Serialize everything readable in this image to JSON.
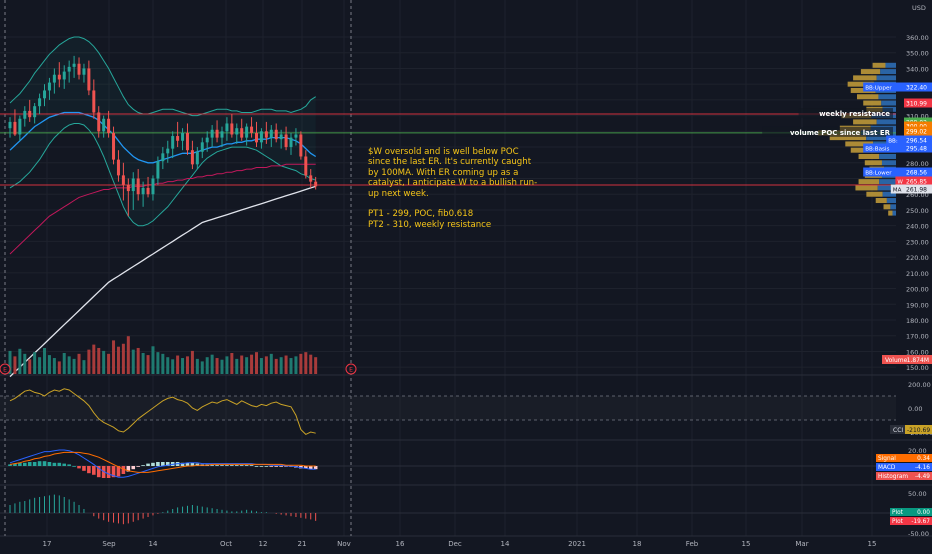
{
  "chart_data": {
    "type": "candlestick",
    "currency": "USD",
    "price_axis": {
      "ticks": [
        "360.00",
        "350.00",
        "340.00",
        "330.00",
        "320.00",
        "310.00",
        "300.00",
        "290.00",
        "280.00",
        "270.00",
        "260.00",
        "250.00",
        "240.00",
        "230.00",
        "220.00",
        "210.00",
        "200.00",
        "190.00",
        "180.00",
        "170.00",
        "160.00",
        "150.00"
      ],
      "range": [
        146,
        366
      ]
    },
    "time_axis": {
      "ticks": [
        "17",
        "Sep",
        "14",
        "Oct",
        "12",
        "21",
        "Nov",
        "16",
        "Dec",
        "14",
        "2021",
        "18",
        "Feb",
        "15",
        "Mar",
        "15"
      ],
      "visible_range": [
        "Aug 10",
        "Apr 20"
      ]
    },
    "candles": [
      {
        "o": 302,
        "h": 309,
        "l": 296,
        "c": 306
      },
      {
        "o": 306,
        "h": 314,
        "l": 297,
        "c": 298
      },
      {
        "o": 298,
        "h": 310,
        "l": 294,
        "c": 308
      },
      {
        "o": 308,
        "h": 316,
        "l": 303,
        "c": 313
      },
      {
        "o": 313,
        "h": 320,
        "l": 306,
        "c": 309
      },
      {
        "o": 309,
        "h": 318,
        "l": 305,
        "c": 316
      },
      {
        "o": 316,
        "h": 324,
        "l": 311,
        "c": 321
      },
      {
        "o": 321,
        "h": 330,
        "l": 316,
        "c": 326
      },
      {
        "o": 326,
        "h": 334,
        "l": 320,
        "c": 331
      },
      {
        "o": 331,
        "h": 340,
        "l": 324,
        "c": 336
      },
      {
        "o": 336,
        "h": 344,
        "l": 328,
        "c": 333
      },
      {
        "o": 333,
        "h": 342,
        "l": 327,
        "c": 338
      },
      {
        "o": 338,
        "h": 345,
        "l": 331,
        "c": 341
      },
      {
        "o": 341,
        "h": 348,
        "l": 334,
        "c": 343
      },
      {
        "o": 343,
        "h": 347,
        "l": 333,
        "c": 336
      },
      {
        "o": 336,
        "h": 343,
        "l": 331,
        "c": 340
      },
      {
        "o": 340,
        "h": 345,
        "l": 323,
        "c": 326
      },
      {
        "o": 326,
        "h": 333,
        "l": 308,
        "c": 312
      },
      {
        "o": 312,
        "h": 316,
        "l": 296,
        "c": 300
      },
      {
        "o": 300,
        "h": 310,
        "l": 296,
        "c": 308
      },
      {
        "o": 308,
        "h": 313,
        "l": 296,
        "c": 299
      },
      {
        "o": 299,
        "h": 303,
        "l": 279,
        "c": 282
      },
      {
        "o": 282,
        "h": 288,
        "l": 268,
        "c": 272
      },
      {
        "o": 272,
        "h": 280,
        "l": 256,
        "c": 266
      },
      {
        "o": 266,
        "h": 270,
        "l": 246,
        "c": 262
      },
      {
        "o": 262,
        "h": 274,
        "l": 250,
        "c": 270
      },
      {
        "o": 270,
        "h": 276,
        "l": 256,
        "c": 260
      },
      {
        "o": 260,
        "h": 268,
        "l": 252,
        "c": 264
      },
      {
        "o": 264,
        "h": 271,
        "l": 258,
        "c": 260
      },
      {
        "o": 260,
        "h": 272,
        "l": 256,
        "c": 270
      },
      {
        "o": 270,
        "h": 284,
        "l": 266,
        "c": 281
      },
      {
        "o": 281,
        "h": 290,
        "l": 276,
        "c": 286
      },
      {
        "o": 286,
        "h": 294,
        "l": 280,
        "c": 289
      },
      {
        "o": 289,
        "h": 300,
        "l": 283,
        "c": 297
      },
      {
        "o": 297,
        "h": 306,
        "l": 290,
        "c": 294
      },
      {
        "o": 294,
        "h": 302,
        "l": 288,
        "c": 299
      },
      {
        "o": 299,
        "h": 305,
        "l": 285,
        "c": 288
      },
      {
        "o": 288,
        "h": 294,
        "l": 276,
        "c": 279
      },
      {
        "o": 279,
        "h": 290,
        "l": 276,
        "c": 287
      },
      {
        "o": 287,
        "h": 296,
        "l": 283,
        "c": 293
      },
      {
        "o": 293,
        "h": 300,
        "l": 287,
        "c": 296
      },
      {
        "o": 296,
        "h": 304,
        "l": 290,
        "c": 301
      },
      {
        "o": 301,
        "h": 307,
        "l": 293,
        "c": 296
      },
      {
        "o": 296,
        "h": 303,
        "l": 290,
        "c": 300
      },
      {
        "o": 300,
        "h": 309,
        "l": 294,
        "c": 305
      },
      {
        "o": 305,
        "h": 311,
        "l": 296,
        "c": 298
      },
      {
        "o": 298,
        "h": 305,
        "l": 292,
        "c": 302
      },
      {
        "o": 302,
        "h": 308,
        "l": 294,
        "c": 296
      },
      {
        "o": 296,
        "h": 305,
        "l": 291,
        "c": 303
      },
      {
        "o": 303,
        "h": 309,
        "l": 296,
        "c": 299
      },
      {
        "o": 299,
        "h": 306,
        "l": 290,
        "c": 293
      },
      {
        "o": 293,
        "h": 302,
        "l": 289,
        "c": 300
      },
      {
        "o": 300,
        "h": 306,
        "l": 292,
        "c": 296
      },
      {
        "o": 296,
        "h": 304,
        "l": 290,
        "c": 301
      },
      {
        "o": 301,
        "h": 305,
        "l": 293,
        "c": 295
      },
      {
        "o": 295,
        "h": 301,
        "l": 289,
        "c": 298
      },
      {
        "o": 298,
        "h": 303,
        "l": 288,
        "c": 290
      },
      {
        "o": 290,
        "h": 299,
        "l": 285,
        "c": 296
      },
      {
        "o": 296,
        "h": 302,
        "l": 291,
        "c": 298
      },
      {
        "o": 298,
        "h": 300,
        "l": 282,
        "c": 284
      },
      {
        "o": 284,
        "h": 288,
        "l": 270,
        "c": 272
      },
      {
        "o": 272,
        "h": 276,
        "l": 264,
        "c": 268
      },
      {
        "o": 268,
        "h": 271,
        "l": 263,
        "c": 265
      }
    ],
    "overlays": {
      "ma_short": [
        288,
        291,
        294,
        297,
        300,
        303,
        305,
        307,
        309,
        310,
        311,
        312,
        312,
        312,
        312,
        311,
        310,
        309,
        307,
        304,
        301,
        298,
        294,
        290,
        287,
        284,
        282,
        281,
        280,
        280,
        281,
        282,
        283,
        284,
        285,
        286,
        286,
        286,
        287,
        288,
        289,
        290,
        290,
        291,
        292,
        292,
        293,
        293,
        294,
        294,
        295,
        295,
        295,
        296,
        296,
        296,
        296,
        295,
        294,
        292,
        289,
        286,
        284
      ],
      "ma_long": [
        222,
        225,
        228,
        231,
        234,
        237,
        240,
        243,
        246,
        248,
        250,
        252,
        254,
        256,
        258,
        259,
        260,
        261,
        262,
        263,
        263,
        264,
        264,
        264,
        264,
        265,
        265,
        265,
        266,
        266,
        267,
        267,
        268,
        268,
        269,
        269,
        270,
        270,
        271,
        271,
        272,
        272,
        273,
        273,
        274,
        274,
        275,
        275,
        276,
        276,
        277,
        277,
        277,
        278,
        278,
        278,
        279,
        279,
        279,
        279,
        279,
        279,
        279
      ],
      "ma_100": [
        144,
        147,
        150,
        153,
        156,
        159,
        162,
        165,
        168,
        171,
        174,
        177,
        180,
        183,
        186,
        189,
        192,
        195,
        198,
        201,
        204,
        206,
        208,
        210,
        212,
        214,
        216,
        218,
        220,
        222,
        224,
        226,
        228,
        230,
        232,
        234,
        236,
        238,
        240,
        242,
        243,
        244,
        245,
        246,
        247,
        248,
        249,
        250,
        251,
        252,
        253,
        254,
        255,
        256,
        257,
        258,
        259,
        260,
        261,
        262,
        263,
        264,
        265
      ],
      "bb_upper": [
        318,
        321,
        324,
        328,
        332,
        337,
        341,
        345,
        349,
        352,
        355,
        357,
        359,
        360,
        360,
        359,
        357,
        354,
        350,
        345,
        340,
        334,
        328,
        322,
        317,
        314,
        312,
        311,
        311,
        312,
        313,
        314,
        314,
        314,
        313,
        312,
        311,
        310,
        310,
        311,
        312,
        313,
        314,
        314,
        314,
        313,
        313,
        312,
        312,
        312,
        313,
        314,
        314,
        314,
        313,
        313,
        313,
        312,
        313,
        314,
        316,
        320,
        322
      ],
      "bb_lower": [
        264,
        266,
        268,
        271,
        274,
        278,
        282,
        287,
        292,
        296,
        299,
        302,
        304,
        305,
        305,
        304,
        301,
        297,
        291,
        284,
        276,
        268,
        260,
        252,
        246,
        242,
        240,
        240,
        241,
        243,
        246,
        249,
        252,
        256,
        260,
        264,
        268,
        272,
        276,
        280,
        283,
        285,
        287,
        288,
        289,
        290,
        290,
        290,
        290,
        289,
        288,
        286,
        284,
        282,
        280,
        278,
        277,
        276,
        275,
        273,
        272,
        270,
        269
      ]
    },
    "horizontal_lines": [
      {
        "label": "weekly resistance",
        "value": 310.99,
        "color": "#f23645"
      },
      {
        "label": "volume POC since last ER",
        "value": 299.02,
        "color": "#4caf50"
      },
      {
        "label": "",
        "value": 265.85,
        "color": "#f23645"
      }
    ],
    "volume_profile": [
      {
        "price": 342,
        "value": 0.3
      },
      {
        "price": 338,
        "value": 0.45
      },
      {
        "price": 334,
        "value": 0.55
      },
      {
        "price": 330,
        "value": 0.62
      },
      {
        "price": 326,
        "value": 0.58
      },
      {
        "price": 322,
        "value": 0.5
      },
      {
        "price": 318,
        "value": 0.42
      },
      {
        "price": 314,
        "value": 0.38
      },
      {
        "price": 310,
        "value": 0.7
      },
      {
        "price": 306,
        "value": 0.55
      },
      {
        "price": 302,
        "value": 0.72
      },
      {
        "price": 299,
        "value": 1.0
      },
      {
        "price": 296,
        "value": 0.85
      },
      {
        "price": 292,
        "value": 0.65
      },
      {
        "price": 288,
        "value": 0.58
      },
      {
        "price": 284,
        "value": 0.48
      },
      {
        "price": 280,
        "value": 0.4
      },
      {
        "price": 276,
        "value": 0.34
      },
      {
        "price": 272,
        "value": 0.4
      },
      {
        "price": 268,
        "value": 0.48
      },
      {
        "price": 264,
        "value": 0.52
      },
      {
        "price": 260,
        "value": 0.38
      },
      {
        "price": 256,
        "value": 0.26
      },
      {
        "price": 252,
        "value": 0.16
      },
      {
        "price": 248,
        "value": 0.1
      }
    ],
    "price_labels": [
      {
        "text": "BB:Upper",
        "value": "322.40",
        "color": "#2962ff"
      },
      {
        "text": "weekly resistance",
        "value": "310.99",
        "color": "#f23645"
      },
      {
        "text": "volume POC since last ER",
        "value": "299.02",
        "color": "#4caf50"
      },
      {
        "text": "",
        "value": "300.00",
        "color": "#f57c00"
      },
      {
        "text": "",
        "value": "299.02",
        "color": "#f57c00"
      },
      {
        "text": "BB:",
        "value": "296.54",
        "color": "#2962ff"
      },
      {
        "text": "BB:Basis",
        "value": "295.48",
        "color": "#2962ff"
      },
      {
        "text": "BB:Lower",
        "value": "268.56",
        "color": "#2962ff"
      },
      {
        "text": "W",
        "value": "265.85",
        "color": "#f23645"
      },
      {
        "text": "MA",
        "value": "261.98",
        "color": "#ffffff"
      }
    ],
    "volume": {
      "label": "Volume",
      "value": "1.874M",
      "values": [
        0.55,
        0.42,
        0.6,
        0.48,
        0.35,
        0.52,
        0.4,
        0.62,
        0.45,
        0.38,
        0.3,
        0.5,
        0.42,
        0.36,
        0.48,
        0.33,
        0.58,
        0.7,
        0.62,
        0.55,
        0.48,
        0.8,
        0.65,
        0.72,
        0.9,
        0.58,
        0.62,
        0.5,
        0.45,
        0.66,
        0.52,
        0.48,
        0.4,
        0.35,
        0.44,
        0.38,
        0.42,
        0.55,
        0.36,
        0.3,
        0.4,
        0.46,
        0.38,
        0.34,
        0.42,
        0.5,
        0.36,
        0.44,
        0.4,
        0.46,
        0.52,
        0.38,
        0.42,
        0.48,
        0.36,
        0.4,
        0.44,
        0.38,
        0.42,
        0.48,
        0.52,
        0.46,
        0.4
      ],
      "up": [
        1,
        0,
        1,
        1,
        0,
        1,
        1,
        1,
        1,
        1,
        0,
        1,
        1,
        1,
        0,
        1,
        0,
        0,
        0,
        1,
        0,
        0,
        0,
        0,
        0,
        1,
        0,
        1,
        0,
        1,
        1,
        1,
        1,
        1,
        0,
        1,
        0,
        0,
        1,
        1,
        1,
        1,
        0,
        1,
        1,
        0,
        1,
        0,
        1,
        0,
        0,
        1,
        0,
        1,
        0,
        1,
        0,
        1,
        1,
        0,
        0,
        0,
        0
      ]
    },
    "cci": {
      "label": "CCI",
      "value": "-210.69",
      "ticks": [
        "200.00",
        "0.00",
        "-200.00"
      ],
      "range": [
        -280,
        280
      ],
      "values": [
        60,
        80,
        110,
        140,
        150,
        130,
        120,
        100,
        130,
        150,
        140,
        160,
        150,
        120,
        90,
        60,
        20,
        -40,
        -90,
        -120,
        -140,
        -160,
        -190,
        -200,
        -170,
        -130,
        -90,
        -60,
        -30,
        0,
        30,
        60,
        80,
        90,
        70,
        60,
        40,
        0,
        -20,
        10,
        30,
        50,
        40,
        60,
        70,
        50,
        30,
        60,
        40,
        20,
        10,
        30,
        20,
        40,
        50,
        30,
        20,
        10,
        -60,
        -180,
        -220,
        -200,
        -210
      ]
    },
    "macd": {
      "labels": [
        {
          "text": "Signal",
          "value": "0.34"
        },
        {
          "text": "MACD",
          "value": "-4.16"
        },
        {
          "text": "Histogram",
          "value": "-4.49"
        }
      ],
      "ticks": [
        "20.00",
        "0.00"
      ],
      "range": [
        -20,
        25
      ],
      "macd": [
        4,
        6,
        8,
        10,
        12,
        14,
        16,
        18,
        18,
        19,
        20,
        20,
        19,
        17,
        14,
        10,
        6,
        2,
        -3,
        -7,
        -10,
        -12,
        -14,
        -14,
        -13,
        -11,
        -9,
        -7,
        -5,
        -3,
        -1,
        0,
        1,
        2,
        3,
        3,
        4,
        4,
        4,
        3,
        3,
        3,
        3,
        3,
        3,
        3,
        3,
        3,
        3,
        3,
        2,
        2,
        2,
        1,
        1,
        1,
        0,
        0,
        -1,
        -2,
        -3,
        -4,
        -4
      ],
      "signal": [
        2,
        3,
        4,
        6,
        7,
        9,
        10,
        12,
        13,
        15,
        16,
        17,
        17,
        17,
        17,
        16,
        15,
        13,
        11,
        8,
        5,
        2,
        -1,
        -4,
        -6,
        -7,
        -8,
        -8,
        -8,
        -7,
        -6,
        -5,
        -4,
        -3,
        -2,
        -1,
        0,
        0,
        1,
        1,
        1,
        2,
        2,
        2,
        2,
        2,
        2,
        2,
        2,
        2,
        2,
        2,
        2,
        2,
        2,
        2,
        1,
        1,
        1,
        1,
        0,
        0,
        0
      ]
    },
    "oscillator": {
      "labels": [
        {
          "text": "Plot",
          "value": "0.00",
          "color": "#089981"
        },
        {
          "text": "Plot",
          "value": "-19.67",
          "color": "#f23645"
        }
      ],
      "ticks": [
        "50.00",
        "0.00",
        "-50.00"
      ],
      "range": [
        -62,
        62
      ],
      "values": [
        20,
        24,
        28,
        30,
        34,
        38,
        40,
        42,
        44,
        46,
        44,
        40,
        34,
        28,
        20,
        10,
        0,
        -8,
        -14,
        -18,
        -22,
        -24,
        -26,
        -28,
        -26,
        -22,
        -18,
        -14,
        -10,
        -6,
        -2,
        2,
        6,
        10,
        14,
        16,
        18,
        20,
        18,
        16,
        14,
        12,
        10,
        8,
        6,
        4,
        4,
        6,
        8,
        6,
        4,
        2,
        2,
        0,
        -2,
        -4,
        -6,
        -8,
        -10,
        -12,
        -14,
        -16,
        -19.67
      ]
    },
    "annotation": [
      "$W oversold and is well below POC",
      "since the last ER. It's currently caught",
      "by 100MA. With ER coming up as a",
      "catalyst, I anticipate W to a bullish run-",
      "up next week.",
      "",
      "PT1 - 299, POC, fib0.618",
      "PT2 - 310, weekly resistance"
    ],
    "earnings_markers": [
      "E",
      "E"
    ],
    "grid": true
  },
  "colors": {
    "background": "#131722",
    "up": "#26a69a",
    "down": "#ef5350",
    "grid": "#1e222d",
    "text": "#b2b5be",
    "annotation": "#f5c518"
  }
}
